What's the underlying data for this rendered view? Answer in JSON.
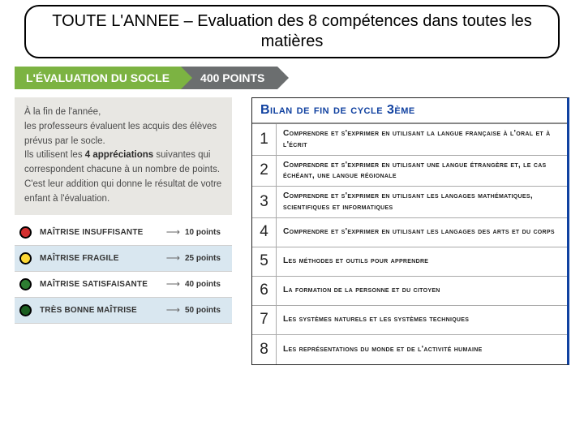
{
  "title": "TOUTE L'ANNEE – Evaluation des 8 compétences dans toutes les matières",
  "breadcrumb": {
    "tab1": "L'ÉVALUATION DU SOCLE",
    "tab2": "400 POINTS",
    "tab1_bg": "#7cb342",
    "tab2_bg": "#6b6e6f"
  },
  "intro": {
    "line1": "À la fin de l'année,",
    "line2": "les professeurs évaluent les acquis des élèves prévus par le socle.",
    "line3": "Ils utilisent les",
    "bold1": "4 appréciations",
    "line4": " suivantes qui correspondent chacune à un nombre de points.",
    "line5": "C'est leur addition qui donne le résultat de votre enfant à l'évaluation."
  },
  "levels": [
    {
      "label": "Maîtrise insuffisante",
      "points": "10 points",
      "color": "#d32f2f",
      "alt": false
    },
    {
      "label": "Maîtrise fragile",
      "points": "25 points",
      "color": "#fdd835",
      "alt": true
    },
    {
      "label": "Maîtrise satisfaisante",
      "points": "40 points",
      "color": "#2e7d32",
      "alt": false
    },
    {
      "label": "Très bonne maîtrise",
      "points": "50 points",
      "color": "#1b5e20",
      "alt": true
    }
  ],
  "bilan": {
    "title": "Bilan de fin de cycle 3ème",
    "title_color": "#1041a0",
    "items": [
      "Comprendre et s'exprimer en utilisant la langue française à l'oral et à l'écrit",
      "Comprendre et s'exprimer en utilisant une langue étrangère et, le cas échéant, une langue régionale",
      "Comprendre et s'exprimer en utilisant les langages mathématiques, scientifiques et informatiques",
      "Comprendre et s'exprimer en utilisant les langages des arts et du corps",
      "Les méthodes et outils pour apprendre",
      "La formation de la personne et du citoyen",
      "Les systèmes naturels et les systèmes techniques",
      "Les représentations du monde et de l'activité humaine"
    ]
  }
}
